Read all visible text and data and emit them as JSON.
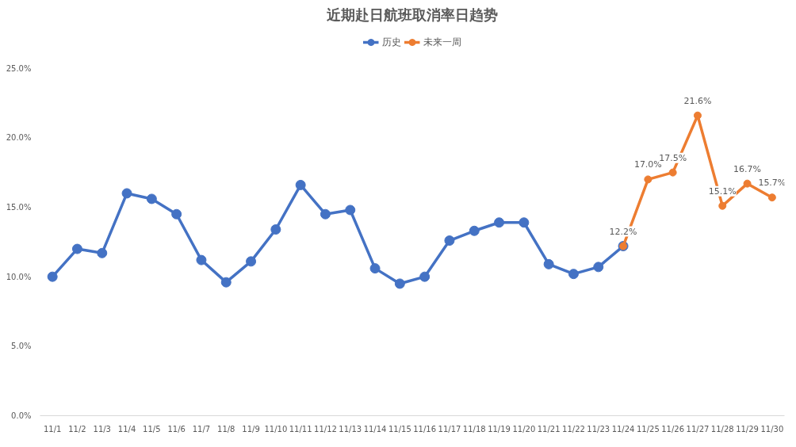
{
  "chart_data": {
    "type": "line",
    "title": "近期赴日航班取消率日趋势",
    "categories": [
      "11/1",
      "11/2",
      "11/3",
      "11/4",
      "11/5",
      "11/6",
      "11/7",
      "11/8",
      "11/9",
      "11/10",
      "11/11",
      "11/12",
      "11/13",
      "11/14",
      "11/15",
      "11/16",
      "11/17",
      "11/18",
      "11/19",
      "11/20",
      "11/21",
      "11/22",
      "11/23",
      "11/24",
      "11/25",
      "11/26",
      "11/27",
      "11/28",
      "11/29",
      "11/30"
    ],
    "series": [
      {
        "name": "历史",
        "color": "#4472c4",
        "values": [
          10.0,
          12.0,
          11.7,
          16.0,
          15.6,
          14.5,
          11.2,
          9.6,
          11.1,
          13.4,
          16.6,
          14.5,
          14.8,
          10.6,
          9.5,
          10.0,
          12.6,
          13.3,
          13.9,
          13.9,
          10.9,
          10.2,
          10.7,
          12.2,
          null,
          null,
          null,
          null,
          null,
          null
        ]
      },
      {
        "name": "未来一周",
        "color": "#ed7d31",
        "values": [
          null,
          null,
          null,
          null,
          null,
          null,
          null,
          null,
          null,
          null,
          null,
          null,
          null,
          null,
          null,
          null,
          null,
          null,
          null,
          null,
          null,
          null,
          null,
          12.2,
          17.0,
          17.5,
          21.6,
          15.1,
          16.7,
          15.7
        ],
        "value_labels": [
          null,
          null,
          null,
          null,
          null,
          null,
          null,
          null,
          null,
          null,
          null,
          null,
          null,
          null,
          null,
          null,
          null,
          null,
          null,
          null,
          null,
          null,
          null,
          "12.2%",
          "17.0%",
          "17.5%",
          "21.6%",
          "15.1%",
          "16.7%",
          "15.7%"
        ]
      }
    ],
    "ylim": [
      0,
      25
    ],
    "yticks": [
      {
        "value": 0,
        "label": "0.0%"
      },
      {
        "value": 5,
        "label": "5.0%"
      },
      {
        "value": 10,
        "label": "10.0%"
      },
      {
        "value": 15,
        "label": "15.0%"
      },
      {
        "value": 20,
        "label": "20.0%"
      },
      {
        "value": 25,
        "label": "25.0%"
      }
    ],
    "grid": false,
    "legend": "top",
    "marker": "circle",
    "line_style": "solid"
  }
}
